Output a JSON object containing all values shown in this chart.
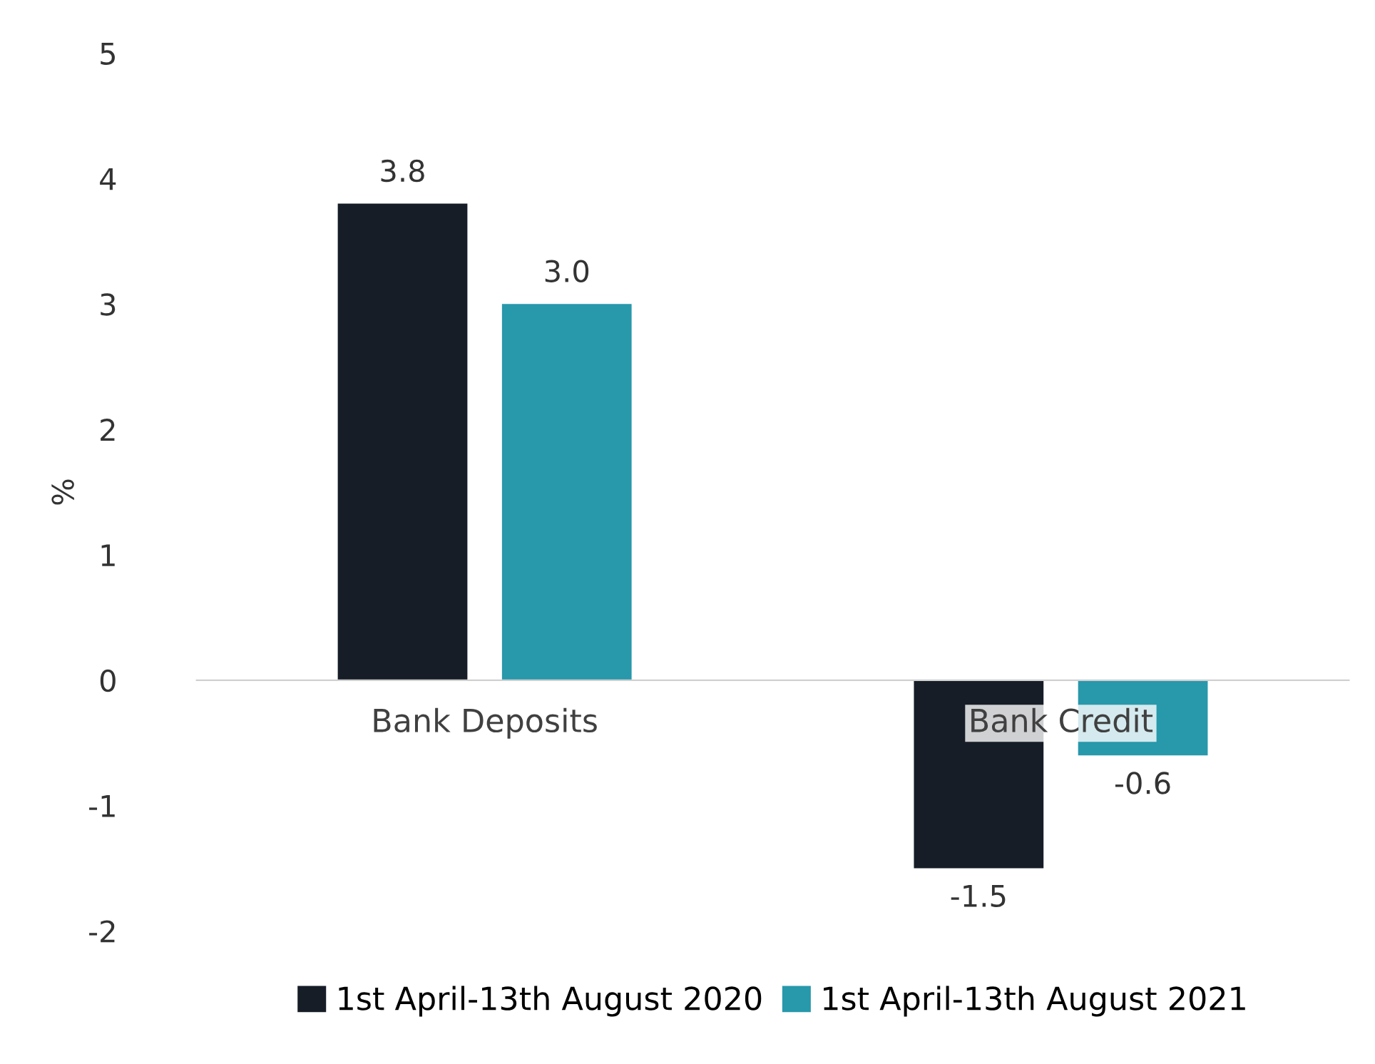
{
  "chart_data": {
    "type": "bar",
    "ylabel": "%",
    "categories": [
      "Bank Deposits",
      "Bank Credit"
    ],
    "series": [
      {
        "name": "1st April-13th August 2020",
        "color": "#161d27",
        "values": [
          3.8,
          -1.5
        ],
        "value_labels": [
          "3.8",
          "-1.5"
        ]
      },
      {
        "name": "1st April-13th August 2021",
        "color": "#2898ab",
        "values": [
          3.0,
          -0.6
        ],
        "value_labels": [
          "3.0",
          "-0.6"
        ]
      }
    ],
    "ylim": [
      -2,
      5
    ],
    "yticks": [
      -2,
      -1,
      0,
      1,
      2,
      3,
      4,
      5
    ],
    "grid": false,
    "legend": "bottom"
  }
}
